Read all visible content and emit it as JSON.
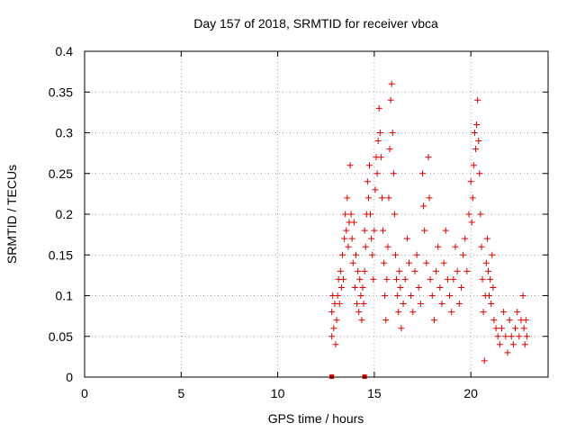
{
  "chart_data": {
    "type": "scatter",
    "title": "Day 157 of 2018, SRMTID for receiver vbca",
    "xlabel": "GPS time / hours",
    "ylabel": "SRMTID / TECUs",
    "xlim": [
      0,
      24
    ],
    "ylim": [
      0,
      0.4
    ],
    "xticks": [
      0,
      5,
      10,
      15,
      20
    ],
    "yticks": [
      0,
      0.05,
      0.1,
      0.15,
      0.2,
      0.25,
      0.3,
      0.35,
      0.4
    ],
    "xtick_labels": [
      "0",
      "5",
      "10",
      "15",
      "20"
    ],
    "ytick_labels": [
      "0",
      "0.05",
      "0.1",
      "0.15",
      "0.2",
      "0.25",
      "0.3",
      "0.35",
      "0.4"
    ],
    "grid": true,
    "marker": "+",
    "series_color": "#e00000",
    "gap_markers_x": [
      12.8,
      14.5
    ],
    "series": [
      {
        "name": "SRMTID",
        "points": [
          [
            12.8,
            0.05
          ],
          [
            12.8,
            0.08
          ],
          [
            12.85,
            0.1
          ],
          [
            12.9,
            0.06
          ],
          [
            12.95,
            0.09
          ],
          [
            13.0,
            0.04
          ],
          [
            13.05,
            0.07
          ],
          [
            13.1,
            0.1
          ],
          [
            13.15,
            0.12
          ],
          [
            13.2,
            0.09
          ],
          [
            13.25,
            0.13
          ],
          [
            13.3,
            0.11
          ],
          [
            13.35,
            0.15
          ],
          [
            13.4,
            0.12
          ],
          [
            13.45,
            0.17
          ],
          [
            13.5,
            0.2
          ],
          [
            13.55,
            0.18
          ],
          [
            13.6,
            0.22
          ],
          [
            13.65,
            0.16
          ],
          [
            13.7,
            0.19
          ],
          [
            13.75,
            0.26
          ],
          [
            13.8,
            0.2
          ],
          [
            13.85,
            0.17
          ],
          [
            13.9,
            0.14
          ],
          [
            13.95,
            0.19
          ],
          [
            14.0,
            0.11
          ],
          [
            14.05,
            0.15
          ],
          [
            14.1,
            0.09
          ],
          [
            14.15,
            0.13
          ],
          [
            14.2,
            0.08
          ],
          [
            14.25,
            0.12
          ],
          [
            14.3,
            0.1
          ],
          [
            14.35,
            0.07
          ],
          [
            14.4,
            0.11
          ],
          [
            14.45,
            0.09
          ],
          [
            14.5,
            0.13
          ],
          [
            14.5,
            0.18
          ],
          [
            14.55,
            0.16
          ],
          [
            14.6,
            0.2
          ],
          [
            14.65,
            0.24
          ],
          [
            14.7,
            0.22
          ],
          [
            14.75,
            0.26
          ],
          [
            14.8,
            0.2
          ],
          [
            14.85,
            0.17
          ],
          [
            14.9,
            0.15
          ],
          [
            14.95,
            0.12
          ],
          [
            15.0,
            0.18
          ],
          [
            15.05,
            0.23
          ],
          [
            15.1,
            0.27
          ],
          [
            15.15,
            0.25
          ],
          [
            15.2,
            0.29
          ],
          [
            15.25,
            0.33
          ],
          [
            15.3,
            0.3
          ],
          [
            15.35,
            0.27
          ],
          [
            15.4,
            0.22
          ],
          [
            15.45,
            0.18
          ],
          [
            15.5,
            0.14
          ],
          [
            15.55,
            0.1
          ],
          [
            15.6,
            0.07
          ],
          [
            15.65,
            0.12
          ],
          [
            15.7,
            0.16
          ],
          [
            15.75,
            0.22
          ],
          [
            15.8,
            0.28
          ],
          [
            15.85,
            0.34
          ],
          [
            15.9,
            0.36
          ],
          [
            15.95,
            0.3
          ],
          [
            16.0,
            0.25
          ],
          [
            16.05,
            0.2
          ],
          [
            16.1,
            0.15
          ],
          [
            16.15,
            0.12
          ],
          [
            16.2,
            0.1
          ],
          [
            16.25,
            0.08
          ],
          [
            16.3,
            0.13
          ],
          [
            16.35,
            0.11
          ],
          [
            16.4,
            0.06
          ],
          [
            16.5,
            0.09
          ],
          [
            16.6,
            0.12
          ],
          [
            16.7,
            0.17
          ],
          [
            16.8,
            0.14
          ],
          [
            16.9,
            0.1
          ],
          [
            17.0,
            0.08
          ],
          [
            17.1,
            0.13
          ],
          [
            17.2,
            0.15
          ],
          [
            17.3,
            0.11
          ],
          [
            17.4,
            0.09
          ],
          [
            17.5,
            0.25
          ],
          [
            17.55,
            0.21
          ],
          [
            17.6,
            0.18
          ],
          [
            17.7,
            0.14
          ],
          [
            17.8,
            0.27
          ],
          [
            17.85,
            0.22
          ],
          [
            17.9,
            0.12
          ],
          [
            18.0,
            0.1
          ],
          [
            18.1,
            0.07
          ],
          [
            18.2,
            0.13
          ],
          [
            18.3,
            0.16
          ],
          [
            18.4,
            0.11
          ],
          [
            18.5,
            0.09
          ],
          [
            18.6,
            0.14
          ],
          [
            18.7,
            0.18
          ],
          [
            18.8,
            0.12
          ],
          [
            18.9,
            0.1
          ],
          [
            19.0,
            0.08
          ],
          [
            19.1,
            0.12
          ],
          [
            19.2,
            0.16
          ],
          [
            19.3,
            0.13
          ],
          [
            19.4,
            0.09
          ],
          [
            19.5,
            0.11
          ],
          [
            19.6,
            0.15
          ],
          [
            19.7,
            0.17
          ],
          [
            19.8,
            0.13
          ],
          [
            19.9,
            0.2
          ],
          [
            20.0,
            0.24
          ],
          [
            20.05,
            0.19
          ],
          [
            20.1,
            0.22
          ],
          [
            20.15,
            0.26
          ],
          [
            20.2,
            0.3
          ],
          [
            20.25,
            0.28
          ],
          [
            20.3,
            0.31
          ],
          [
            20.35,
            0.34
          ],
          [
            20.4,
            0.29
          ],
          [
            20.45,
            0.25
          ],
          [
            20.5,
            0.2
          ],
          [
            20.55,
            0.16
          ],
          [
            20.6,
            0.12
          ],
          [
            20.65,
            0.08
          ],
          [
            20.7,
            0.02
          ],
          [
            20.75,
            0.1
          ],
          [
            20.8,
            0.14
          ],
          [
            20.85,
            0.17
          ],
          [
            20.9,
            0.13
          ],
          [
            20.95,
            0.1
          ],
          [
            21.0,
            0.12
          ],
          [
            21.05,
            0.09
          ],
          [
            21.1,
            0.15
          ],
          [
            21.15,
            0.11
          ],
          [
            21.2,
            0.07
          ],
          [
            21.3,
            0.06
          ],
          [
            21.4,
            0.05
          ],
          [
            21.5,
            0.04
          ],
          [
            21.6,
            0.06
          ],
          [
            21.7,
            0.08
          ],
          [
            21.8,
            0.05
          ],
          [
            21.9,
            0.03
          ],
          [
            22.0,
            0.07
          ],
          [
            22.1,
            0.05
          ],
          [
            22.2,
            0.04
          ],
          [
            22.3,
            0.06
          ],
          [
            22.4,
            0.08
          ],
          [
            22.5,
            0.05
          ],
          [
            22.6,
            0.07
          ],
          [
            22.7,
            0.1
          ],
          [
            22.75,
            0.06
          ],
          [
            22.8,
            0.04
          ],
          [
            22.85,
            0.07
          ],
          [
            22.9,
            0.05
          ]
        ]
      }
    ]
  }
}
